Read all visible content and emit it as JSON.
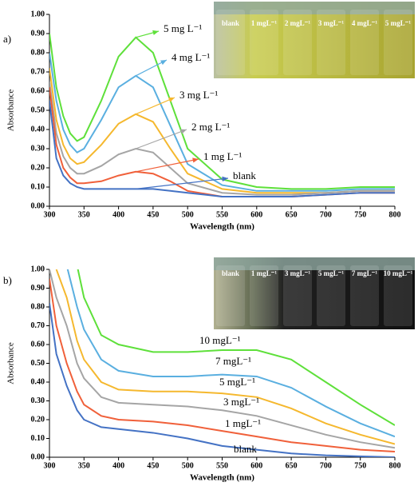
{
  "chart_data": [
    {
      "type": "line",
      "panel": "a)",
      "ylabel": "Absorbance",
      "xlabel": "Wavelength (nm)",
      "x": [
        300,
        310,
        320,
        330,
        340,
        350,
        375,
        400,
        425,
        450,
        475,
        500,
        550,
        600,
        650,
        700,
        750,
        800
      ],
      "xlim": [
        300,
        800
      ],
      "xticks": [
        300,
        350,
        400,
        450,
        500,
        550,
        600,
        650,
        700,
        750,
        800
      ],
      "ylim": [
        0,
        1
      ],
      "yticks": [
        {
          "value": 0,
          "label": "0.00"
        },
        {
          "value": 0.1,
          "label": "0.10"
        },
        {
          "value": 0.2,
          "label": "0.20"
        },
        {
          "value": 0.3,
          "label": "0.30"
        },
        {
          "value": 0.4,
          "label": "0.40"
        },
        {
          "value": 0.5,
          "label": "0.50"
        },
        {
          "value": 0.6,
          "label": "0.60"
        },
        {
          "value": 0.7,
          "label": "0.70"
        },
        {
          "value": 0.8,
          "label": "0.80"
        },
        {
          "value": 0.9,
          "label": "0.90"
        },
        {
          "value": 1,
          "label": "1.00"
        }
      ],
      "series": [
        {
          "name": "5 mg L⁻¹",
          "color": "#5ee03a",
          "values": [
            0.9,
            0.62,
            0.47,
            0.38,
            0.34,
            0.36,
            0.55,
            0.78,
            0.88,
            0.8,
            0.55,
            0.3,
            0.14,
            0.1,
            0.09,
            0.09,
            0.1,
            0.1
          ]
        },
        {
          "name": "4 mg L⁻¹",
          "color": "#5aafe0",
          "values": [
            0.8,
            0.55,
            0.4,
            0.32,
            0.28,
            0.3,
            0.45,
            0.62,
            0.68,
            0.62,
            0.42,
            0.22,
            0.11,
            0.08,
            0.08,
            0.08,
            0.09,
            0.09
          ]
        },
        {
          "name": "3 mg L⁻¹",
          "color": "#f5b82e",
          "values": [
            0.72,
            0.45,
            0.32,
            0.25,
            0.22,
            0.23,
            0.32,
            0.43,
            0.48,
            0.44,
            0.3,
            0.17,
            0.09,
            0.07,
            0.07,
            0.07,
            0.08,
            0.08
          ]
        },
        {
          "name": "2 mg L⁻¹",
          "color": "#a5a5a5",
          "values": [
            0.65,
            0.38,
            0.26,
            0.2,
            0.17,
            0.17,
            0.21,
            0.27,
            0.3,
            0.28,
            0.2,
            0.12,
            0.07,
            0.06,
            0.06,
            0.07,
            0.08,
            0.08
          ]
        },
        {
          "name": "1 mg L⁻¹",
          "color": "#f0603a",
          "values": [
            0.62,
            0.32,
            0.2,
            0.15,
            0.12,
            0.12,
            0.13,
            0.16,
            0.18,
            0.17,
            0.13,
            0.08,
            0.05,
            0.05,
            0.05,
            0.06,
            0.07,
            0.07
          ]
        },
        {
          "name": "blank",
          "color": "#4472c4",
          "values": [
            0.55,
            0.25,
            0.16,
            0.12,
            0.1,
            0.09,
            0.09,
            0.09,
            0.09,
            0.09,
            0.08,
            0.07,
            0.05,
            0.05,
            0.05,
            0.06,
            0.07,
            0.07
          ]
        }
      ],
      "inset_labels": [
        "blank",
        "1 mgL⁻¹",
        "2 mgL⁻¹",
        "3 mgL⁻¹",
        "4 mgL⁻¹",
        "5 mgL⁻¹"
      ]
    },
    {
      "type": "line",
      "panel": "b)",
      "ylabel": "Absorbance",
      "xlabel": "Wavelength (nm)",
      "x": [
        300,
        310,
        325,
        340,
        350,
        375,
        400,
        450,
        500,
        550,
        600,
        650,
        700,
        750,
        800
      ],
      "xlim": [
        300,
        800
      ],
      "xticks": [
        300,
        350,
        400,
        450,
        500,
        550,
        600,
        650,
        700,
        750,
        800
      ],
      "ylim": [
        0,
        1
      ],
      "yticks": [
        {
          "value": 0,
          "label": "0.00"
        },
        {
          "value": 0.1,
          "label": "0.10"
        },
        {
          "value": 0.2,
          "label": "0.20"
        },
        {
          "value": 0.3,
          "label": "0.30"
        },
        {
          "value": 0.4,
          "label": "0.40"
        },
        {
          "value": 0.5,
          "label": "0.50"
        },
        {
          "value": 0.6,
          "label": "0.60"
        },
        {
          "value": 0.7,
          "label": "0.70"
        },
        {
          "value": 0.8,
          "label": "0.80"
        },
        {
          "value": 0.9,
          "label": "0.90"
        },
        {
          "value": 1,
          "label": "1.00"
        }
      ],
      "series": [
        {
          "name": "10 mgL⁻¹",
          "color": "#5ee03a",
          "values": [
            null,
            null,
            null,
            1.02,
            0.85,
            0.65,
            0.6,
            0.56,
            0.56,
            0.57,
            0.57,
            0.52,
            0.4,
            0.28,
            0.17
          ]
        },
        {
          "name": "7 mgL⁻¹",
          "color": "#5aafe0",
          "values": [
            null,
            null,
            1.02,
            0.8,
            0.68,
            0.52,
            0.46,
            0.43,
            0.43,
            0.44,
            0.43,
            0.37,
            0.27,
            0.18,
            0.11
          ]
        },
        {
          "name": "5 mgL⁻¹",
          "color": "#f5b82e",
          "values": [
            null,
            1.0,
            0.85,
            0.62,
            0.52,
            0.4,
            0.36,
            0.35,
            0.35,
            0.34,
            0.32,
            0.26,
            0.18,
            0.12,
            0.07
          ]
        },
        {
          "name": "3 mgL⁻¹",
          "color": "#a5a5a5",
          "values": [
            1.0,
            0.85,
            0.7,
            0.5,
            0.42,
            0.32,
            0.29,
            0.28,
            0.27,
            0.25,
            0.22,
            0.17,
            0.12,
            0.08,
            0.05
          ]
        },
        {
          "name": "1 mgL⁻¹",
          "color": "#f0603a",
          "values": [
            0.95,
            0.7,
            0.5,
            0.35,
            0.28,
            0.22,
            0.2,
            0.19,
            0.17,
            0.14,
            0.11,
            0.08,
            0.06,
            0.04,
            0.03
          ]
        },
        {
          "name": "blank",
          "color": "#4472c4",
          "values": [
            0.82,
            0.55,
            0.38,
            0.25,
            0.2,
            0.16,
            0.15,
            0.13,
            0.1,
            0.06,
            0.04,
            0.02,
            0.01,
            0.005,
            0
          ]
        }
      ],
      "inset_labels": [
        "blank",
        "1 mgL⁻¹",
        "3 mgL⁻¹",
        "5 mgL⁻¹",
        "7 mgL⁻¹",
        "10 mgL⁻¹"
      ]
    }
  ]
}
